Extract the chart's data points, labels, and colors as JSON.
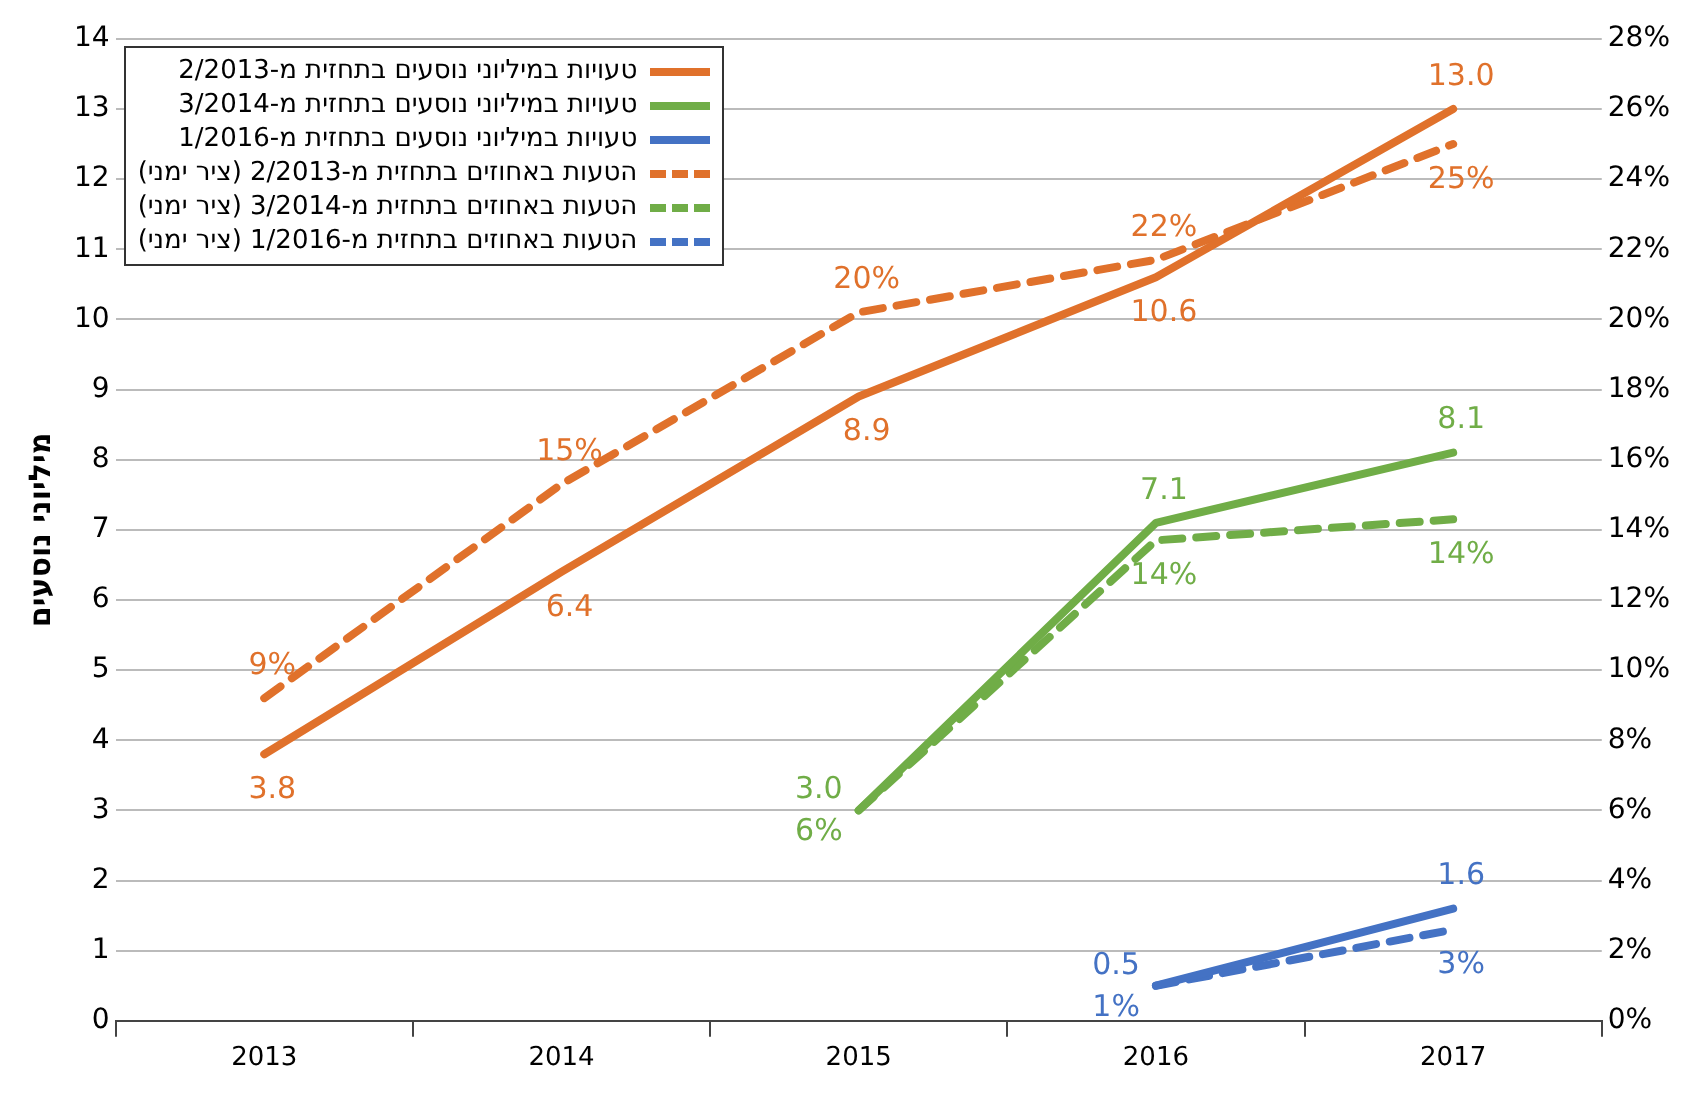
{
  "chart_data": {
    "type": "line",
    "ylabel": "מיליוני נוסעים",
    "categories": [
      "2013",
      "2014",
      "2015",
      "2016",
      "2017"
    ],
    "series": [
      {
        "name": "טעויות במיליוני נוסעים בתחזית מ-2/2013",
        "color": "#e0712b",
        "values": [
          3.8,
          6.4,
          8.9,
          10.6,
          13.0
        ],
        "value_labels": [
          "3.8",
          "6.4",
          "8.9",
          "10.6",
          "13.0"
        ],
        "line_style": "solid"
      },
      {
        "name": "טעויות במיליוני נוסעים בתחזית מ-3/2014",
        "color": "#70ad47",
        "values": [
          null,
          null,
          3.0,
          7.1,
          8.1
        ],
        "value_labels": [
          null,
          null,
          "3.0",
          "7.1",
          "8.1"
        ],
        "line_style": "solid"
      },
      {
        "name": "טעויות במיליוני נוסעים בתחזית מ-1/2016",
        "color": "#4472c4",
        "values": [
          null,
          null,
          null,
          0.5,
          1.6
        ],
        "value_labels": [
          null,
          null,
          null,
          "0.5",
          "1.6"
        ],
        "line_style": "solid"
      },
      {
        "name": "הטעות באחוזים בתחזית מ-2/2013 (ציר ימני)",
        "color": "#e0712b",
        "values": [
          9.2,
          15.3,
          20.2,
          21.7,
          25.0
        ],
        "value_labels": [
          "9%",
          "15%",
          "20%",
          "22%",
          "25%"
        ],
        "axis": "y2",
        "line_style": "dashed"
      },
      {
        "name": "הטעות באחוזים בתחזית מ-3/2014 (ציר ימני)",
        "color": "#70ad47",
        "values": [
          null,
          null,
          6.0,
          13.7,
          14.3
        ],
        "value_labels": [
          null,
          null,
          "6%",
          "14%",
          "14%"
        ],
        "axis": "y2",
        "line_style": "dashed"
      },
      {
        "name": "הטעות באחוזים בתחזית מ-1/2016 (ציר ימני)",
        "color": "#4472c4",
        "values": [
          null,
          null,
          null,
          1.0,
          2.6
        ],
        "value_labels": [
          null,
          null,
          null,
          "1%",
          "3%"
        ],
        "axis": "y2",
        "line_style": "dashed"
      }
    ],
    "data_labels": true,
    "ylim": [
      0,
      14
    ],
    "yticks": [
      0,
      1,
      2,
      3,
      4,
      5,
      6,
      7,
      8,
      9,
      10,
      11,
      12,
      13,
      14
    ],
    "y2lim": [
      0,
      28
    ],
    "y2ticks": [
      {
        "value": 0,
        "label": "0%"
      },
      {
        "value": 2,
        "label": "2%"
      },
      {
        "value": 4,
        "label": "4%"
      },
      {
        "value": 6,
        "label": "6%"
      },
      {
        "value": 8,
        "label": "8%"
      },
      {
        "value": 10,
        "label": "10%"
      },
      {
        "value": 12,
        "label": "12%"
      },
      {
        "value": 14,
        "label": "14%"
      },
      {
        "value": 16,
        "label": "16%"
      },
      {
        "value": 18,
        "label": "18%"
      },
      {
        "value": 20,
        "label": "20%"
      },
      {
        "value": 22,
        "label": "22%"
      },
      {
        "value": 24,
        "label": "24%"
      },
      {
        "value": 26,
        "label": "26%"
      },
      {
        "value": 28,
        "label": "28%"
      }
    ],
    "grid": "y",
    "legend": "top left",
    "marker": "none"
  }
}
